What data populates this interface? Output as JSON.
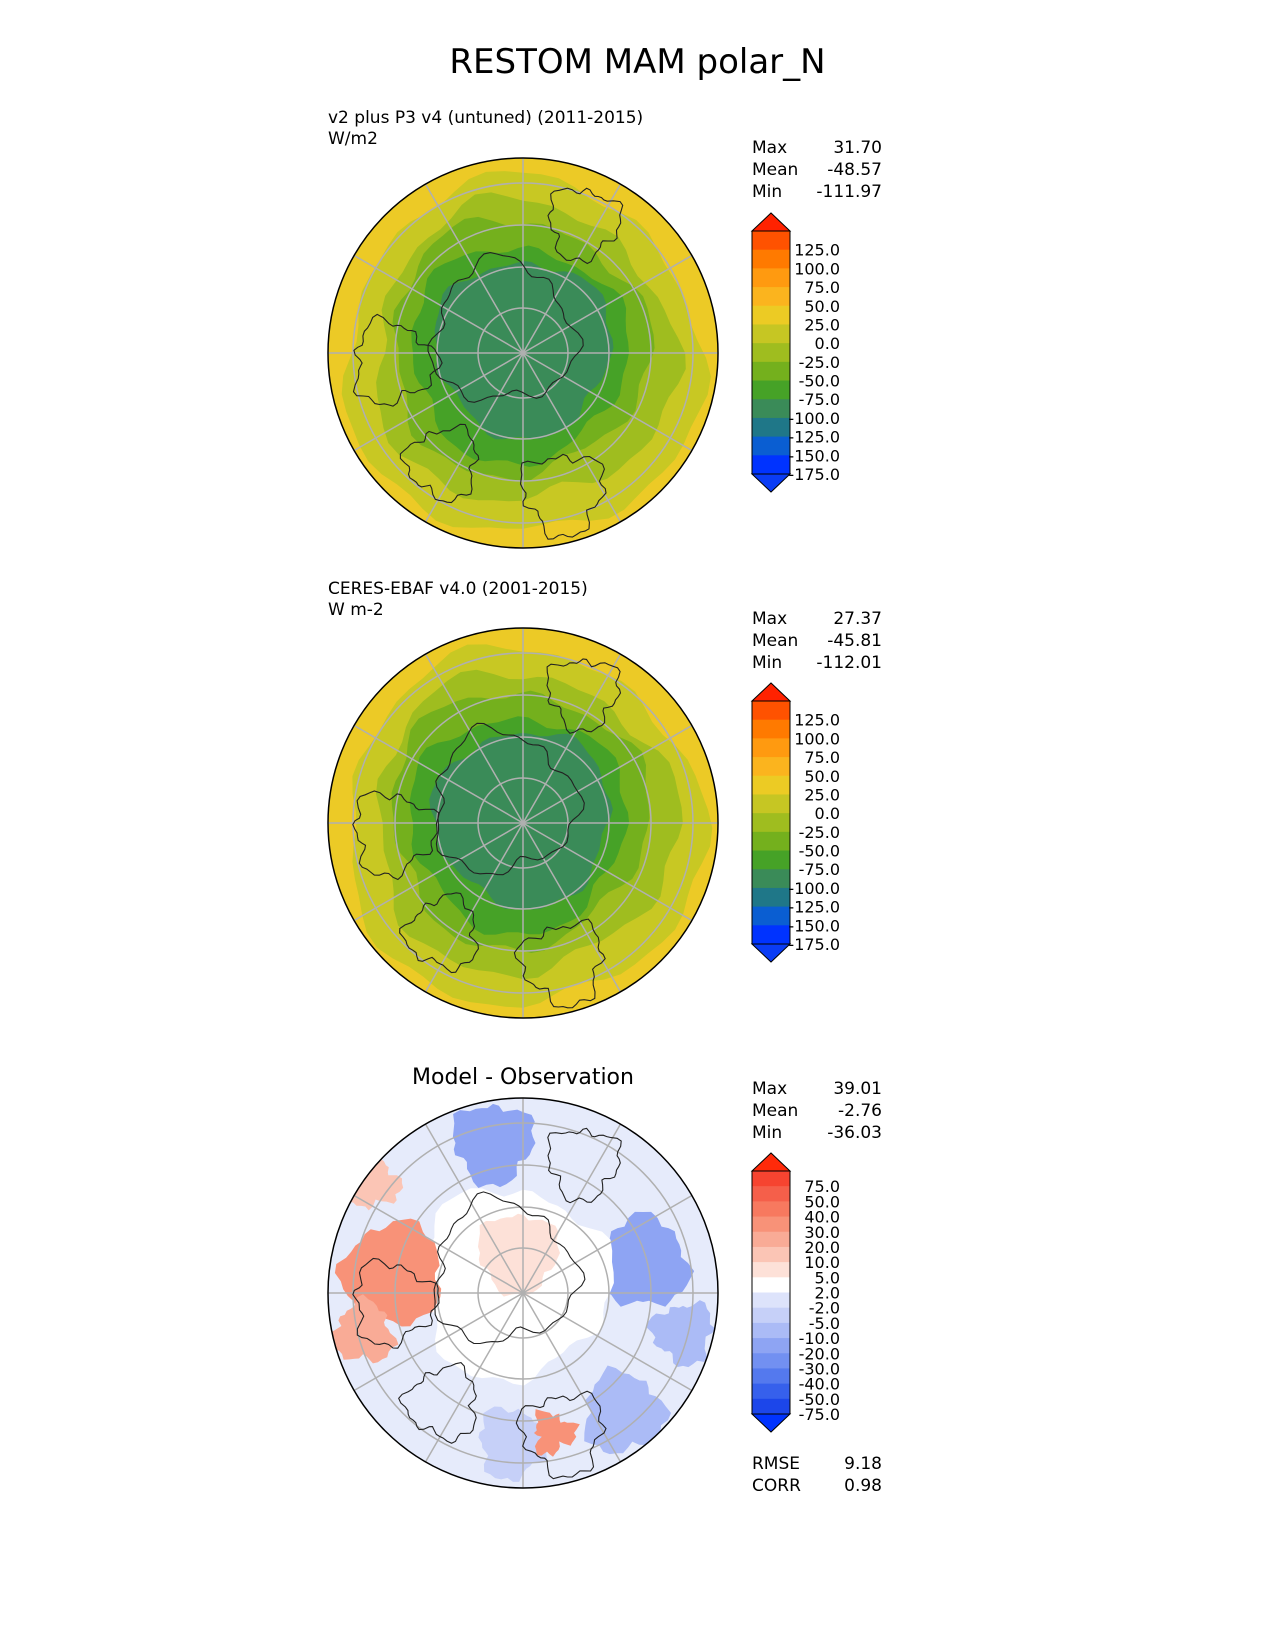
{
  "title": "RESTOM MAM polar_N",
  "panels": [
    {
      "line1": "v2 plus P3 v4 (untuned) (2011-2015)",
      "line2": "W/m2",
      "stats": [
        {
          "label": "Max",
          "value": "31.70"
        },
        {
          "label": "Mean",
          "value": "-48.57"
        },
        {
          "label": "Min",
          "value": "-111.97"
        }
      ]
    },
    {
      "line1": "CERES-EBAF v4.0 (2001-2015)",
      "line2": "W m-2",
      "stats": [
        {
          "label": "Max",
          "value": "27.37"
        },
        {
          "label": "Mean",
          "value": "-45.81"
        },
        {
          "label": "Min",
          "value": "-112.01"
        }
      ]
    },
    {
      "title": "Model - Observation",
      "stats": [
        {
          "label": "Max",
          "value": "39.01"
        },
        {
          "label": "Mean",
          "value": "-2.76"
        },
        {
          "label": "Min",
          "value": "-36.03"
        }
      ],
      "bottom_stats": [
        {
          "label": "RMSE",
          "value": "9.18"
        },
        {
          "label": "CORR",
          "value": "0.98"
        }
      ]
    }
  ],
  "colorbar_main": {
    "labels": [
      "125.0",
      "100.0",
      "75.0",
      "50.0",
      "25.0",
      "0.0",
      "-25.0",
      "-50.0",
      "-75.0",
      "-100.0",
      "-125.0",
      "-150.0",
      "-175.0"
    ],
    "colors": [
      "#ff2200",
      "#ff5200",
      "#ff7a00",
      "#ff9a10",
      "#fbb41e",
      "#eccb24",
      "#c6c623",
      "#9fbd1f",
      "#74b01d",
      "#46a227",
      "#3a8b58",
      "#1f7788",
      "#0a5ed2",
      "#0033ff",
      "#0a3cf5"
    ]
  },
  "colorbar_diff": {
    "labels": [
      "75.0",
      "50.0",
      "40.0",
      "30.0",
      "20.0",
      "10.0",
      "5.0",
      "2.0",
      "-2.0",
      "-5.0",
      "-10.0",
      "-20.0",
      "-30.0",
      "-40.0",
      "-50.0",
      "-75.0"
    ],
    "colors": [
      "#ff2a0a",
      "#f64430",
      "#f55f4a",
      "#f7795f",
      "#f89278",
      "#f9ab96",
      "#fbc5b5",
      "#fde1d8",
      "#ffffff",
      "#dde3fb",
      "#c6d0f8",
      "#abbbf6",
      "#8ea4f3",
      "#7290f1",
      "#5479ee",
      "#3660ec",
      "#1c46ea",
      "#0033ff"
    ]
  },
  "colors": {
    "map_ring_outer": "#ecca26",
    "map_ring_2": "#c8c823",
    "map_ring_3": "#9fbd1f",
    "map_ring_4": "#74b01d",
    "map_ring_5": "#46a227",
    "map_center": "#3a8b58",
    "diff_base": "#e6ebfb",
    "grid": "#b0b0b0"
  }
}
